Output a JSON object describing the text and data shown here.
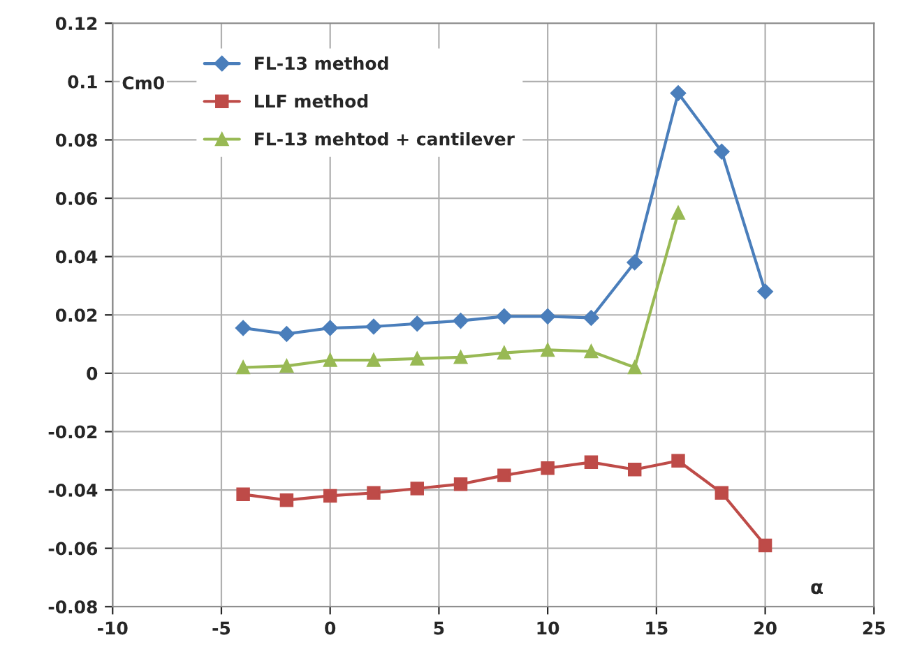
{
  "chart_data": {
    "type": "line",
    "xlabel": "α",
    "ylabel": "Cm0",
    "x": [
      -4,
      -2,
      0,
      2,
      4,
      6,
      8,
      10,
      12,
      14,
      16,
      18,
      20
    ],
    "series": [
      {
        "name": "FL-13 method",
        "color": "#4a7ebb",
        "marker": "diamond",
        "values": [
          0.0155,
          0.0135,
          0.0155,
          0.016,
          0.017,
          0.018,
          0.0195,
          0.0195,
          0.019,
          0.038,
          0.096,
          0.076,
          0.028
        ]
      },
      {
        "name": "LLF method",
        "color": "#be4b48",
        "marker": "square",
        "values": [
          -0.0415,
          -0.0435,
          -0.042,
          -0.041,
          -0.0395,
          -0.038,
          -0.035,
          -0.0325,
          -0.0305,
          -0.033,
          -0.03,
          -0.041,
          -0.059
        ]
      },
      {
        "name": "FL-13 mehtod + cantilever",
        "color": "#98b954",
        "marker": "triangle",
        "values": [
          0.002,
          0.0025,
          0.0045,
          0.0045,
          0.005,
          0.0055,
          0.007,
          0.008,
          0.0075,
          0.002,
          0.055,
          null,
          null
        ]
      }
    ],
    "xlim": [
      -10,
      25
    ],
    "xticks": [
      -10,
      -5,
      0,
      5,
      10,
      15,
      20,
      25
    ],
    "ylim": [
      -0.08,
      0.12
    ],
    "yticks": [
      {
        "value": -0.08,
        "label": "-0.08"
      },
      {
        "value": -0.06,
        "label": "-0.06"
      },
      {
        "value": -0.04,
        "label": "-0.04"
      },
      {
        "value": -0.02,
        "label": "-0.02"
      },
      0,
      0.02,
      0.04,
      0.06,
      0.08,
      0.1,
      0.12
    ],
    "grid": true,
    "legend": "top left",
    "line_style": "solid"
  }
}
